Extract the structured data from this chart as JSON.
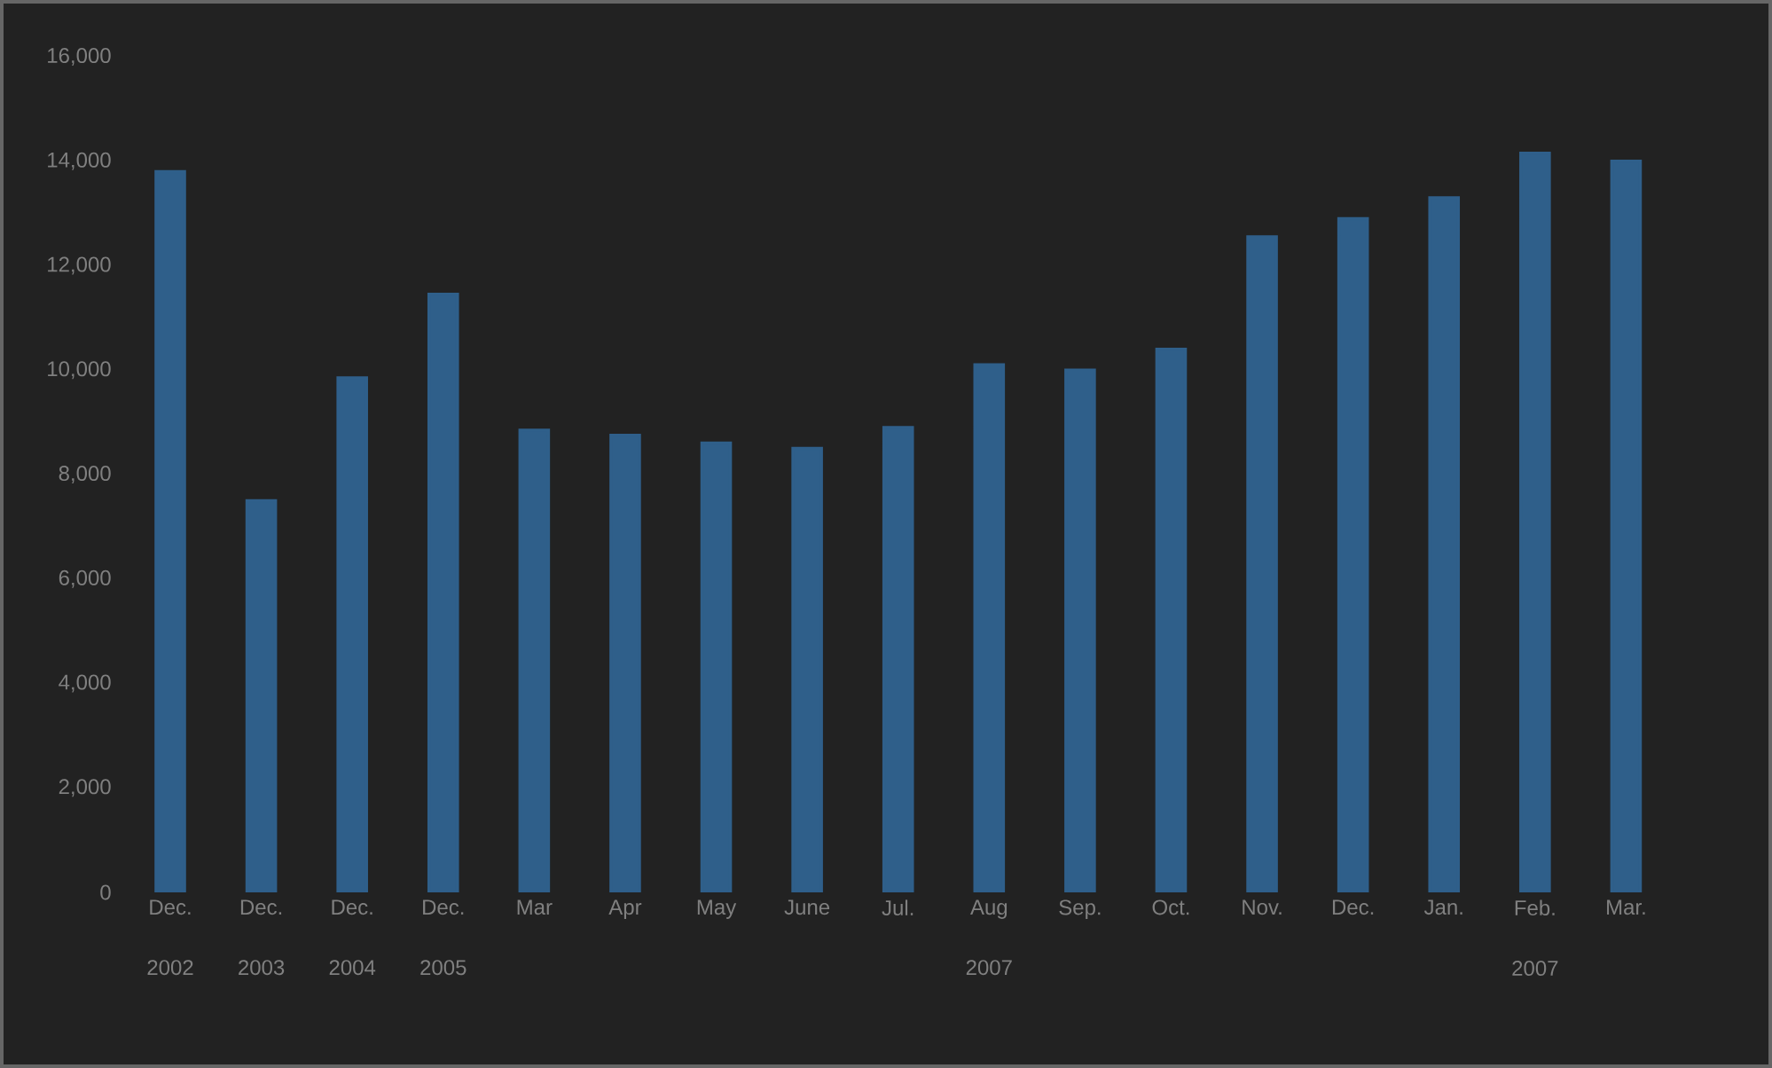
{
  "chart_data": {
    "type": "bar",
    "categories": [
      "Dec. 2002",
      "Dec. 2003",
      "Dec. 2004",
      "Dec. 2005",
      "Mar",
      "Apr",
      "May",
      "June",
      "Jul.",
      "Aug 2007",
      "Sep.",
      "Oct.",
      "Nov.",
      "Dec.",
      "Jan.",
      "Feb. 2007",
      "Mar."
    ],
    "values": [
      13800,
      7500,
      9850,
      11450,
      8850,
      8750,
      8600,
      8500,
      8900,
      10100,
      10000,
      10400,
      12550,
      12900,
      13300,
      14150,
      14000
    ],
    "color": "#2f5f8a",
    "ylim": [
      0,
      16000
    ],
    "yticks": [
      0,
      {
        "value": 2000,
        "label": "2,000"
      },
      {
        "value": 4000,
        "label": "4,000"
      },
      {
        "value": 6000,
        "label": "6,000"
      },
      {
        "value": 8000,
        "label": "8,000"
      },
      {
        "value": 10000,
        "label": "10,000"
      },
      {
        "value": 12000,
        "label": "12,000"
      },
      {
        "value": 14000,
        "label": "14,000"
      },
      {
        "value": 16000,
        "label": "16,000"
      }
    ]
  }
}
